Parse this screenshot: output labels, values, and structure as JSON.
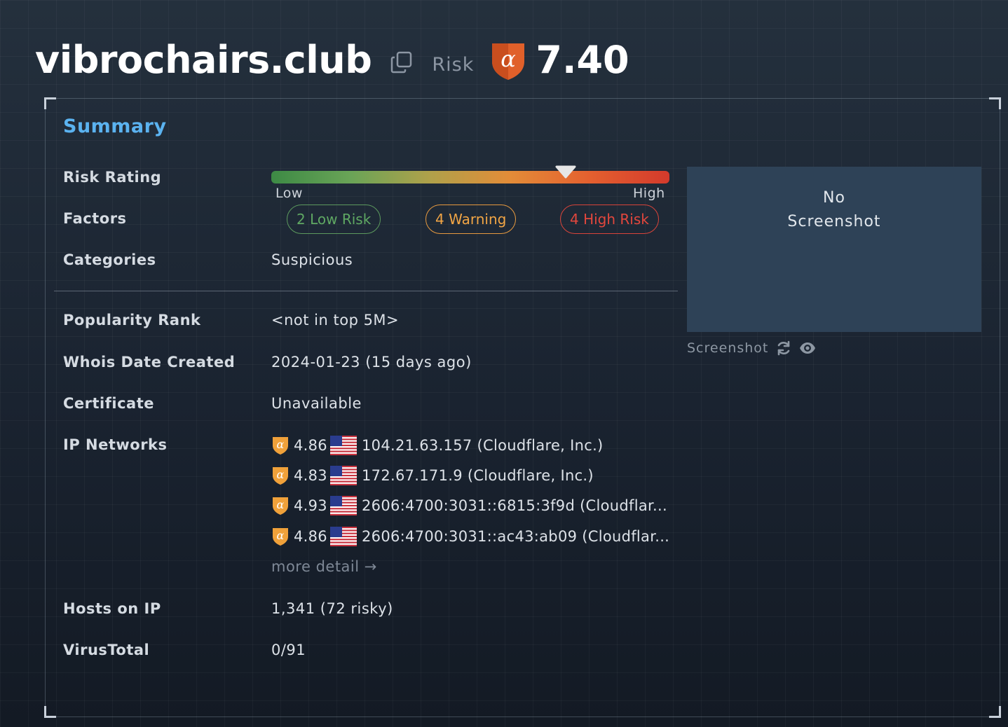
{
  "header": {
    "domain": "vibrochairs.club",
    "risk_label": "Risk",
    "risk_score": "7.40",
    "colors": {
      "shield": "#e0602a",
      "accent": "#5bb3f0"
    }
  },
  "summary": {
    "title": "Summary",
    "risk_rating": {
      "label": "Risk Rating",
      "low_label": "Low",
      "high_label": "High",
      "marker_fraction": 0.74
    },
    "factors": {
      "label": "Factors",
      "low": "2 Low Risk",
      "warning": "4 Warning",
      "high": "4 High Risk"
    },
    "categories": {
      "label": "Categories",
      "value": "Suspicious"
    },
    "popularity": {
      "label": "Popularity Rank",
      "value": "<not in top 5M>"
    },
    "whois": {
      "label": "Whois Date Created",
      "value": "2024-01-23 (15 days ago)"
    },
    "certificate": {
      "label": "Certificate",
      "value": "Unavailable"
    },
    "ip_networks": {
      "label": "IP Networks",
      "items": [
        {
          "score": "4.86",
          "flag": "us-flag",
          "address": "104.21.63.157 (Cloudflare, Inc.)"
        },
        {
          "score": "4.83",
          "flag": "us-flag",
          "address": "172.67.171.9 (Cloudflare, Inc.)"
        },
        {
          "score": "4.93",
          "flag": "us-flag",
          "address": "2606:4700:3031::6815:3f9d (Cloudflar..."
        },
        {
          "score": "4.86",
          "flag": "us-flag",
          "address": "2606:4700:3031::ac43:ab09 (Cloudflar..."
        }
      ],
      "more_detail": "more detail →"
    },
    "hosts_on_ip": {
      "label": "Hosts on IP",
      "value": "1,341 (72 risky)"
    },
    "virustotal": {
      "label": "VirusTotal",
      "value": "0/91"
    }
  },
  "screenshot": {
    "line1": "No",
    "line2": "Screenshot",
    "caption": "Screenshot",
    "icons": [
      "refresh-icon",
      "eye-icon"
    ]
  }
}
